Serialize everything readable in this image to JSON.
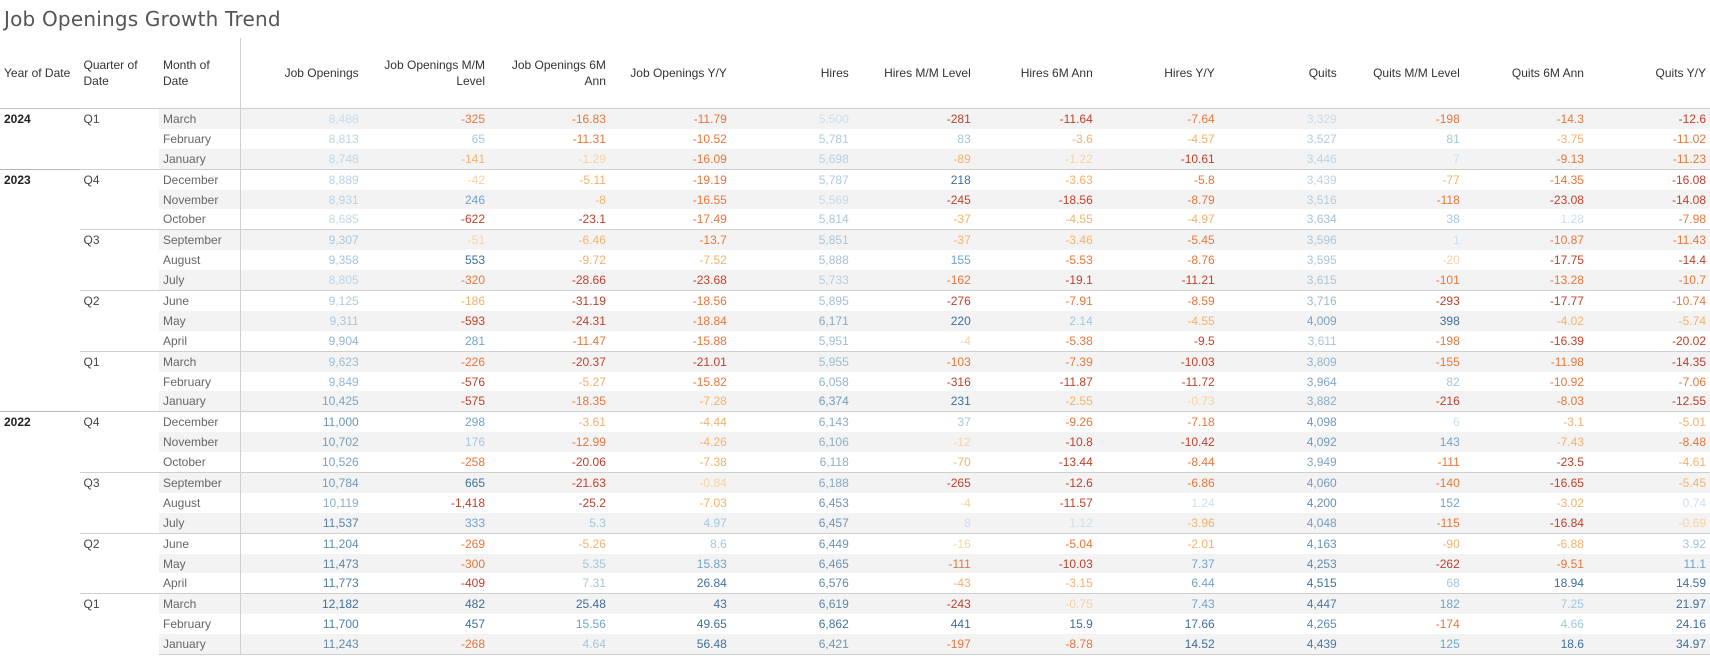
{
  "title": "Job Openings Growth Trend",
  "colors": {
    "neg_dark": "#c0402a",
    "neg_med": "#e8763a",
    "neg_light": "#f4b26b",
    "neg_faint": "#f8d2a4",
    "pos_faint": "#cde0ee",
    "pos_light": "#a3c7df",
    "pos_med": "#6fa5cc",
    "pos_dark": "#3f6f9c"
  },
  "chart_data": {
    "type": "table",
    "columns": [
      "Year of Date",
      "Quarter of Date",
      "Month of Date",
      "Job Openings",
      "Job Openings M/M Level",
      "Job Openings 6M Ann",
      "Job Openings Y/Y",
      "Hires",
      "Hires M/M Level",
      "Hires 6M Ann",
      "Hires Y/Y",
      "Quits",
      "Quits M/M Level",
      "Quits 6M Ann",
      "Quits Y/Y"
    ],
    "rows": [
      [
        "2024",
        "Q1",
        "March",
        "8,488",
        "-325",
        "-16.83",
        "-11.79",
        "5,500",
        "-281",
        "-11.64",
        "-7.64",
        "3,329",
        "-198",
        "-14.3",
        "-12.6"
      ],
      [
        "2024",
        "Q1",
        "February",
        "8,813",
        "65",
        "-11.31",
        "-10.52",
        "5,781",
        "83",
        "-3.6",
        "-4.57",
        "3,527",
        "81",
        "-3.75",
        "-11.02"
      ],
      [
        "2024",
        "Q1",
        "January",
        "8,748",
        "-141",
        "-1.29",
        "-16.09",
        "5,698",
        "-89",
        "-1.22",
        "-10.61",
        "3,446",
        "7",
        "-9.13",
        "-11.23"
      ],
      [
        "2023",
        "Q4",
        "December",
        "8,889",
        "-42",
        "-5.11",
        "-19.19",
        "5,787",
        "218",
        "-3.63",
        "-5.8",
        "3,439",
        "-77",
        "-14.35",
        "-16.08"
      ],
      [
        "2023",
        "Q4",
        "November",
        "8,931",
        "246",
        "-8",
        "-16.55",
        "5,569",
        "-245",
        "-18.56",
        "-8.79",
        "3,516",
        "-118",
        "-23.08",
        "-14.08"
      ],
      [
        "2023",
        "Q4",
        "October",
        "8,685",
        "-622",
        "-23.1",
        "-17.49",
        "5,814",
        "-37",
        "-4.55",
        "-4.97",
        "3,634",
        "38",
        "1.28",
        "-7.98"
      ],
      [
        "2023",
        "Q3",
        "September",
        "9,307",
        "-51",
        "-6.46",
        "-13.7",
        "5,851",
        "-37",
        "-3.46",
        "-5.45",
        "3,596",
        "1",
        "-10.87",
        "-11.43"
      ],
      [
        "2023",
        "Q3",
        "August",
        "9,358",
        "553",
        "-9.72",
        "-7.52",
        "5,888",
        "155",
        "-5.53",
        "-8.76",
        "3,595",
        "-20",
        "-17.75",
        "-14.4"
      ],
      [
        "2023",
        "Q3",
        "July",
        "8,805",
        "-320",
        "-28.66",
        "-23.68",
        "5,733",
        "-162",
        "-19.1",
        "-11.21",
        "3,615",
        "-101",
        "-13.28",
        "-10.7"
      ],
      [
        "2023",
        "Q2",
        "June",
        "9,125",
        "-186",
        "-31.19",
        "-18.56",
        "5,895",
        "-276",
        "-7.91",
        "-8.59",
        "3,716",
        "-293",
        "-17.77",
        "-10.74"
      ],
      [
        "2023",
        "Q2",
        "May",
        "9,311",
        "-593",
        "-24.31",
        "-18.84",
        "6,171",
        "220",
        "2.14",
        "-4.55",
        "4,009",
        "398",
        "-4.02",
        "-5.74"
      ],
      [
        "2023",
        "Q2",
        "April",
        "9,904",
        "281",
        "-11.47",
        "-15.88",
        "5,951",
        "-4",
        "-5.38",
        "-9.5",
        "3,611",
        "-198",
        "-16.39",
        "-20.02"
      ],
      [
        "2023",
        "Q1",
        "March",
        "9,623",
        "-226",
        "-20.37",
        "-21.01",
        "5,955",
        "-103",
        "-7.39",
        "-10.03",
        "3,809",
        "-155",
        "-11.98",
        "-14.35"
      ],
      [
        "2023",
        "Q1",
        "February",
        "9,849",
        "-576",
        "-5.27",
        "-15.82",
        "6,058",
        "-316",
        "-11.87",
        "-11.72",
        "3,964",
        "82",
        "-10.92",
        "-7.06"
      ],
      [
        "2023",
        "Q1",
        "January",
        "10,425",
        "-575",
        "-18.35",
        "-7.28",
        "6,374",
        "231",
        "-2.55",
        "-0.73",
        "3,882",
        "-216",
        "-8.03",
        "-12.55"
      ],
      [
        "2022",
        "Q4",
        "December",
        "11,000",
        "298",
        "-3.61",
        "-4.44",
        "6,143",
        "37",
        "-9.26",
        "-7.18",
        "4,098",
        "6",
        "-3.1",
        "-5.01"
      ],
      [
        "2022",
        "Q4",
        "November",
        "10,702",
        "176",
        "-12.99",
        "-4.26",
        "6,106",
        "-12",
        "-10.8",
        "-10.42",
        "4,092",
        "143",
        "-7.43",
        "-8.48"
      ],
      [
        "2022",
        "Q4",
        "October",
        "10,526",
        "-258",
        "-20.06",
        "-7.38",
        "6,118",
        "-70",
        "-13.44",
        "-8.44",
        "3,949",
        "-111",
        "-23.5",
        "-4.61"
      ],
      [
        "2022",
        "Q3",
        "September",
        "10,784",
        "665",
        "-21.63",
        "-0.84",
        "6,188",
        "-265",
        "-12.6",
        "-6.86",
        "4,060",
        "-140",
        "-16.65",
        "-5.45"
      ],
      [
        "2022",
        "Q3",
        "August",
        "10,119",
        "-1,418",
        "-25.2",
        "-7.03",
        "6,453",
        "-4",
        "-11.57",
        "1.24",
        "4,200",
        "152",
        "-3.02",
        "0.74"
      ],
      [
        "2022",
        "Q3",
        "July",
        "11,537",
        "333",
        "5.3",
        "4.97",
        "6,457",
        "8",
        "1.12",
        "-3.96",
        "4,048",
        "-115",
        "-16.84",
        "-0.69"
      ],
      [
        "2022",
        "Q2",
        "June",
        "11,204",
        "-269",
        "-5.26",
        "8.6",
        "6,449",
        "-16",
        "-5.04",
        "-2.01",
        "4,163",
        "-90",
        "-6.88",
        "3.92"
      ],
      [
        "2022",
        "Q2",
        "May",
        "11,473",
        "-300",
        "5.35",
        "15.83",
        "6,465",
        "-111",
        "-10.03",
        "7.37",
        "4,253",
        "-262",
        "-9.51",
        "11.1"
      ],
      [
        "2022",
        "Q2",
        "April",
        "11,773",
        "-409",
        "7.31",
        "26.84",
        "6,576",
        "-43",
        "-3.15",
        "6.44",
        "4,515",
        "68",
        "18.94",
        "14.59"
      ],
      [
        "2022",
        "Q1",
        "March",
        "12,182",
        "482",
        "25.48",
        "43",
        "6,619",
        "-243",
        "-0.75",
        "7.43",
        "4,447",
        "182",
        "7.25",
        "21.97"
      ],
      [
        "2022",
        "Q1",
        "February",
        "11,700",
        "457",
        "15.56",
        "49.65",
        "6,862",
        "441",
        "15.9",
        "17.66",
        "4,265",
        "-174",
        "4.66",
        "24.16"
      ],
      [
        "2022",
        "Q1",
        "January",
        "11,243",
        "-268",
        "4.64",
        "56.48",
        "6,421",
        "-197",
        "-8.78",
        "14.52",
        "4,439",
        "125",
        "18.6",
        "34.97"
      ]
    ]
  }
}
